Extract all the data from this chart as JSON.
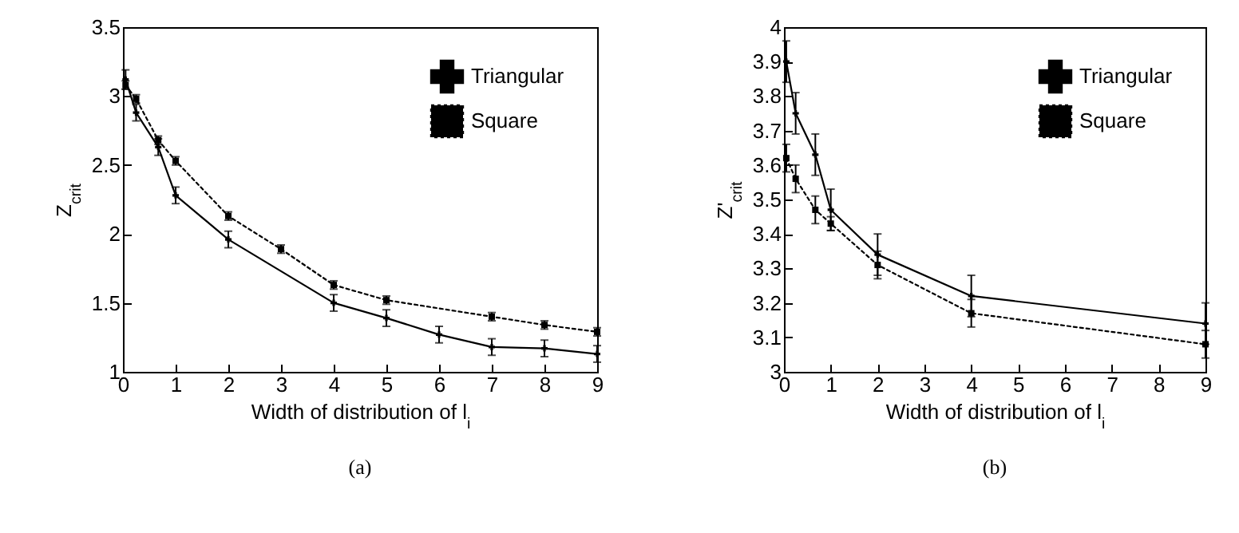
{
  "chart_data": [
    {
      "type": "line",
      "xlabel": "Width of distribution of l$_{i}$",
      "ylabel": "Z$_{crit}$",
      "annotations": [
        "(a)"
      ],
      "xlim": [
        0,
        9
      ],
      "xticks": [
        0,
        1,
        2,
        3,
        4,
        5,
        6,
        7,
        8,
        9
      ],
      "ylim": [
        1,
        3.5
      ],
      "yticks": [
        1,
        1.5,
        2,
        2.5,
        3,
        3.5
      ],
      "legend": "top right",
      "series": [
        {
          "name": "Triangular",
          "color": "#000000",
          "marker": "cross",
          "line_style": "solid",
          "x": [
            0.05,
            0.25,
            0.67,
            1,
            2,
            4,
            5,
            6,
            7,
            8,
            9
          ],
          "values": [
            3.12,
            2.88,
            2.63,
            2.28,
            1.96,
            1.5,
            1.39,
            1.27,
            1.18,
            1.17,
            1.13
          ],
          "errors": [
            0.07,
            0.06,
            0.06,
            0.06,
            0.06,
            0.06,
            0.06,
            0.06,
            0.06,
            0.06,
            0.06
          ]
        },
        {
          "name": "Square",
          "color": "#000000",
          "marker": "square",
          "line_style": "dotted",
          "x": [
            0.05,
            0.25,
            0.67,
            1,
            2,
            3,
            4,
            5,
            7,
            8,
            9
          ],
          "values": [
            3.08,
            2.98,
            2.68,
            2.53,
            2.13,
            1.89,
            1.63,
            1.52,
            1.4,
            1.34,
            1.29
          ],
          "errors": [
            0.03,
            0.03,
            0.03,
            0.03,
            0.03,
            0.03,
            0.03,
            0.03,
            0.03,
            0.03,
            0.03
          ]
        }
      ]
    },
    {
      "type": "line",
      "xlabel": "Width of distribution of l$_{i}$",
      "ylabel": "Z'$_{crit}$",
      "annotations": [
        "(b)"
      ],
      "xlim": [
        0,
        9
      ],
      "xticks": [
        0,
        1,
        2,
        3,
        4,
        5,
        6,
        7,
        8,
        9
      ],
      "ylim": [
        3,
        4
      ],
      "yticks": [
        3,
        3.1,
        3.2,
        3.3,
        3.4,
        3.5,
        3.6,
        3.7,
        3.8,
        3.9,
        4
      ],
      "legend": "top right",
      "series": [
        {
          "name": "Triangular",
          "color": "#000000",
          "marker": "cross",
          "line_style": "solid",
          "x": [
            0.05,
            0.25,
            0.67,
            1,
            2,
            4,
            9
          ],
          "values": [
            3.9,
            3.75,
            3.63,
            3.47,
            3.34,
            3.22,
            3.14
          ],
          "errors": [
            0.06,
            0.06,
            0.06,
            0.06,
            0.06,
            0.06,
            0.06
          ]
        },
        {
          "name": "Square",
          "color": "#000000",
          "marker": "square",
          "line_style": "dotted",
          "x": [
            0.05,
            0.25,
            0.67,
            1,
            2,
            4,
            9
          ],
          "values": [
            3.62,
            3.56,
            3.47,
            3.43,
            3.31,
            3.17,
            3.08
          ],
          "errors": [
            0.04,
            0.04,
            0.04,
            0.02,
            0.04,
            0.04,
            0.04
          ]
        }
      ]
    }
  ]
}
